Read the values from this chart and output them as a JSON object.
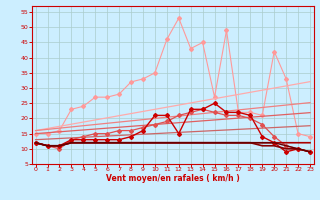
{
  "x": [
    0,
    1,
    2,
    3,
    4,
    5,
    6,
    7,
    8,
    9,
    10,
    11,
    12,
    13,
    14,
    15,
    16,
    17,
    18,
    19,
    20,
    21,
    22,
    23
  ],
  "lines": [
    {
      "label": "salmon_jagged_top",
      "color": "#ff9999",
      "lw": 0.8,
      "marker": "D",
      "markersize": 2.0,
      "y": [
        15,
        15,
        16,
        23,
        24,
        27,
        27,
        28,
        32,
        33,
        35,
        46,
        53,
        43,
        45,
        27,
        49,
        22,
        22,
        21,
        42,
        33,
        15,
        14
      ]
    },
    {
      "label": "trend_light1",
      "color": "#ffaaaa",
      "lw": 0.9,
      "marker": null,
      "markersize": 0,
      "y": [
        16,
        16.7,
        17.4,
        18.1,
        18.8,
        19.5,
        20.2,
        20.9,
        21.6,
        22.3,
        23.0,
        23.7,
        24.4,
        25.1,
        25.8,
        26.5,
        27.2,
        27.9,
        28.6,
        29.3,
        30.0,
        30.7,
        31.4,
        32.1
      ]
    },
    {
      "label": "trend_light2",
      "color": "#f08080",
      "lw": 0.9,
      "marker": null,
      "markersize": 0,
      "y": [
        16,
        16.4,
        16.8,
        17.2,
        17.6,
        18.0,
        18.4,
        18.8,
        19.2,
        19.6,
        20.0,
        20.4,
        20.8,
        21.2,
        21.6,
        22.0,
        22.4,
        22.8,
        23.2,
        23.6,
        24.0,
        24.4,
        24.8,
        25.2
      ]
    },
    {
      "label": "trend_medium",
      "color": "#e06060",
      "lw": 0.9,
      "marker": null,
      "markersize": 0,
      "y": [
        15,
        15.3,
        15.6,
        15.9,
        16.2,
        16.5,
        16.8,
        17.1,
        17.4,
        17.7,
        18.0,
        18.3,
        18.6,
        18.9,
        19.2,
        19.5,
        19.8,
        20.1,
        20.4,
        20.7,
        21.0,
        21.3,
        21.6,
        21.9
      ]
    },
    {
      "label": "trend_lower",
      "color": "#cc6666",
      "lw": 0.9,
      "marker": null,
      "markersize": 0,
      "y": [
        13,
        13.2,
        13.4,
        13.6,
        13.8,
        14.0,
        14.2,
        14.4,
        14.6,
        14.8,
        15.0,
        15.2,
        15.4,
        15.6,
        15.8,
        16.0,
        16.2,
        16.4,
        16.6,
        16.8,
        17.0,
        17.2,
        17.4,
        17.6
      ]
    },
    {
      "label": "med_pink_jagged",
      "color": "#e05050",
      "lw": 0.9,
      "marker": "D",
      "markersize": 2.0,
      "y": [
        12,
        11,
        10,
        13,
        14,
        15,
        15,
        16,
        16,
        17,
        18,
        19,
        21,
        22,
        23,
        22,
        21,
        21,
        20,
        18,
        14,
        11,
        10,
        9
      ]
    },
    {
      "label": "dark_red_jagged",
      "color": "#cc0000",
      "lw": 1.0,
      "marker": "D",
      "markersize": 2.0,
      "y": [
        12,
        11,
        11,
        13,
        13,
        13,
        13,
        13,
        14,
        16,
        21,
        21,
        15,
        23,
        23,
        25,
        22,
        22,
        21,
        14,
        12,
        9,
        10,
        9
      ]
    },
    {
      "label": "dark_red_flat1",
      "color": "#aa0000",
      "lw": 1.2,
      "marker": null,
      "markersize": 0,
      "y": [
        12,
        11,
        11,
        12,
        12,
        12,
        12,
        12,
        12,
        12,
        12,
        12,
        12,
        12,
        12,
        12,
        12,
        12,
        12,
        12,
        12,
        12,
        12,
        12
      ]
    },
    {
      "label": "dark_red_flat2",
      "color": "#880000",
      "lw": 1.2,
      "marker": null,
      "markersize": 0,
      "y": [
        12,
        11,
        11,
        12,
        12,
        12,
        12,
        12,
        12,
        12,
        12,
        12,
        12,
        12,
        12,
        12,
        12,
        12,
        12,
        11,
        11,
        10,
        10,
        9
      ]
    },
    {
      "label": "dark_red_flat3",
      "color": "#660000",
      "lw": 1.0,
      "marker": null,
      "markersize": 0,
      "y": [
        12,
        11,
        11,
        12,
        12,
        12,
        12,
        12,
        12,
        12,
        12,
        12,
        12,
        12,
        12,
        12,
        12,
        12,
        12,
        12,
        12,
        11,
        10,
        9
      ]
    }
  ],
  "xlim": [
    -0.3,
    23.3
  ],
  "ylim": [
    5,
    57
  ],
  "yticks": [
    5,
    10,
    15,
    20,
    25,
    30,
    35,
    40,
    45,
    50,
    55
  ],
  "xticks": [
    0,
    1,
    2,
    3,
    4,
    5,
    6,
    7,
    8,
    9,
    10,
    11,
    12,
    13,
    14,
    15,
    16,
    17,
    18,
    19,
    20,
    21,
    22,
    23
  ],
  "xlabel": "Vent moyen/en rafales ( km/h )",
  "bg_color": "#cceeff",
  "grid_color": "#aacccc",
  "tick_color": "#cc0000",
  "label_color": "#cc0000"
}
